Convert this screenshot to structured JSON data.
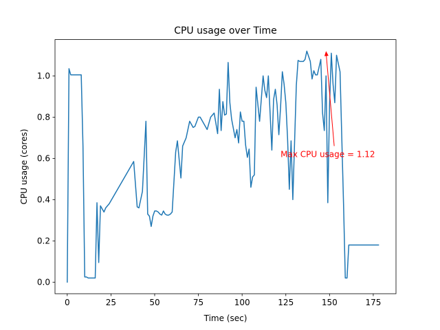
{
  "chart_data": {
    "type": "line",
    "title": "CPU usage over Time",
    "xlabel": "Time (sec)",
    "ylabel": "CPU usage (cores)",
    "xlim": [
      -7,
      188
    ],
    "ylim": [
      -0.056,
      1.176
    ],
    "xticks": [
      0,
      25,
      50,
      75,
      100,
      125,
      150,
      175
    ],
    "yticks": [
      0.0,
      0.2,
      0.4,
      0.6,
      0.8,
      1.0
    ],
    "xtick_labels": [
      "0",
      "25",
      "50",
      "75",
      "100",
      "125",
      "150",
      "175"
    ],
    "ytick_labels": [
      "0.0",
      "0.2",
      "0.4",
      "0.6",
      "0.8",
      "1.0"
    ],
    "grid": false,
    "series": [
      {
        "name": "CPU usage",
        "color": "#1f77b4",
        "x": [
          0,
          1,
          2,
          3,
          4,
          5,
          6,
          7,
          8,
          9,
          10,
          11,
          12,
          13,
          14,
          15,
          16,
          17,
          18,
          19,
          20,
          21,
          22,
          23,
          24,
          38,
          40,
          41,
          43,
          45,
          46,
          47,
          48,
          49,
          50,
          51,
          52,
          53,
          54,
          55,
          56,
          57,
          58,
          59,
          60,
          62,
          63,
          65,
          66,
          68,
          70,
          72,
          73,
          75,
          76,
          78,
          80,
          82,
          84,
          86,
          87,
          88,
          89,
          90,
          91,
          92,
          93,
          94,
          96,
          97,
          98,
          99,
          100,
          101,
          102,
          103,
          104,
          105,
          106,
          107,
          108,
          110,
          112,
          113,
          114,
          115,
          117,
          118,
          119,
          120,
          121,
          122,
          123,
          124,
          125,
          126,
          127,
          128,
          129,
          131,
          132,
          133,
          135,
          136,
          137,
          139,
          140,
          141,
          142,
          143,
          145,
          146,
          147,
          148,
          149,
          150,
          151,
          152,
          153,
          154,
          155,
          156,
          158,
          159,
          160,
          161,
          162,
          163,
          164,
          165,
          166,
          167,
          168,
          169,
          170,
          171,
          172,
          173,
          174,
          175,
          176,
          177,
          178
        ],
        "y": [
          0.0,
          1.035,
          1.005,
          1.005,
          1.005,
          1.005,
          1.005,
          1.005,
          1.005,
          0.66,
          0.025,
          0.025,
          0.02,
          0.02,
          0.02,
          0.02,
          0.02,
          0.385,
          0.095,
          0.37,
          0.355,
          0.34,
          0.36,
          0.37,
          0.38,
          0.585,
          0.365,
          0.36,
          0.44,
          0.78,
          0.33,
          0.32,
          0.27,
          0.32,
          0.345,
          0.345,
          0.34,
          0.33,
          0.325,
          0.345,
          0.33,
          0.325,
          0.325,
          0.33,
          0.34,
          0.63,
          0.685,
          0.505,
          0.66,
          0.7,
          0.78,
          0.75,
          0.755,
          0.8,
          0.8,
          0.77,
          0.74,
          0.8,
          0.82,
          0.72,
          0.935,
          0.735,
          0.875,
          0.81,
          0.815,
          1.065,
          0.87,
          0.79,
          0.7,
          0.74,
          0.675,
          0.825,
          0.78,
          0.78,
          0.665,
          0.605,
          0.645,
          0.46,
          0.51,
          0.52,
          0.945,
          0.78,
          1.0,
          0.93,
          0.895,
          1.0,
          0.64,
          0.885,
          0.935,
          0.86,
          0.715,
          0.85,
          1.02,
          0.96,
          0.87,
          0.695,
          0.45,
          0.685,
          0.4,
          0.955,
          1.075,
          1.07,
          1.07,
          1.08,
          1.12,
          1.07,
          0.985,
          1.025,
          1.005,
          1.005,
          1.08,
          0.82,
          0.735,
          1.0,
          0.385,
          0.855,
          1.11,
          0.96,
          0.87,
          1.1,
          1.06,
          1.02,
          0.38,
          0.02,
          0.02,
          0.18,
          0.18,
          0.18,
          0.18,
          0.18,
          0.18,
          0.18,
          0.18,
          0.18,
          0.18,
          0.18,
          0.18,
          0.18,
          0.18,
          0.18,
          0.18,
          0.18,
          0.18
        ]
      }
    ],
    "annotations": [
      {
        "text": "Max CPU usage = 1.12",
        "point": [
          148,
          1.12
        ],
        "text_pos": [
          122,
          0.62
        ],
        "color": "#ff0000"
      }
    ]
  }
}
